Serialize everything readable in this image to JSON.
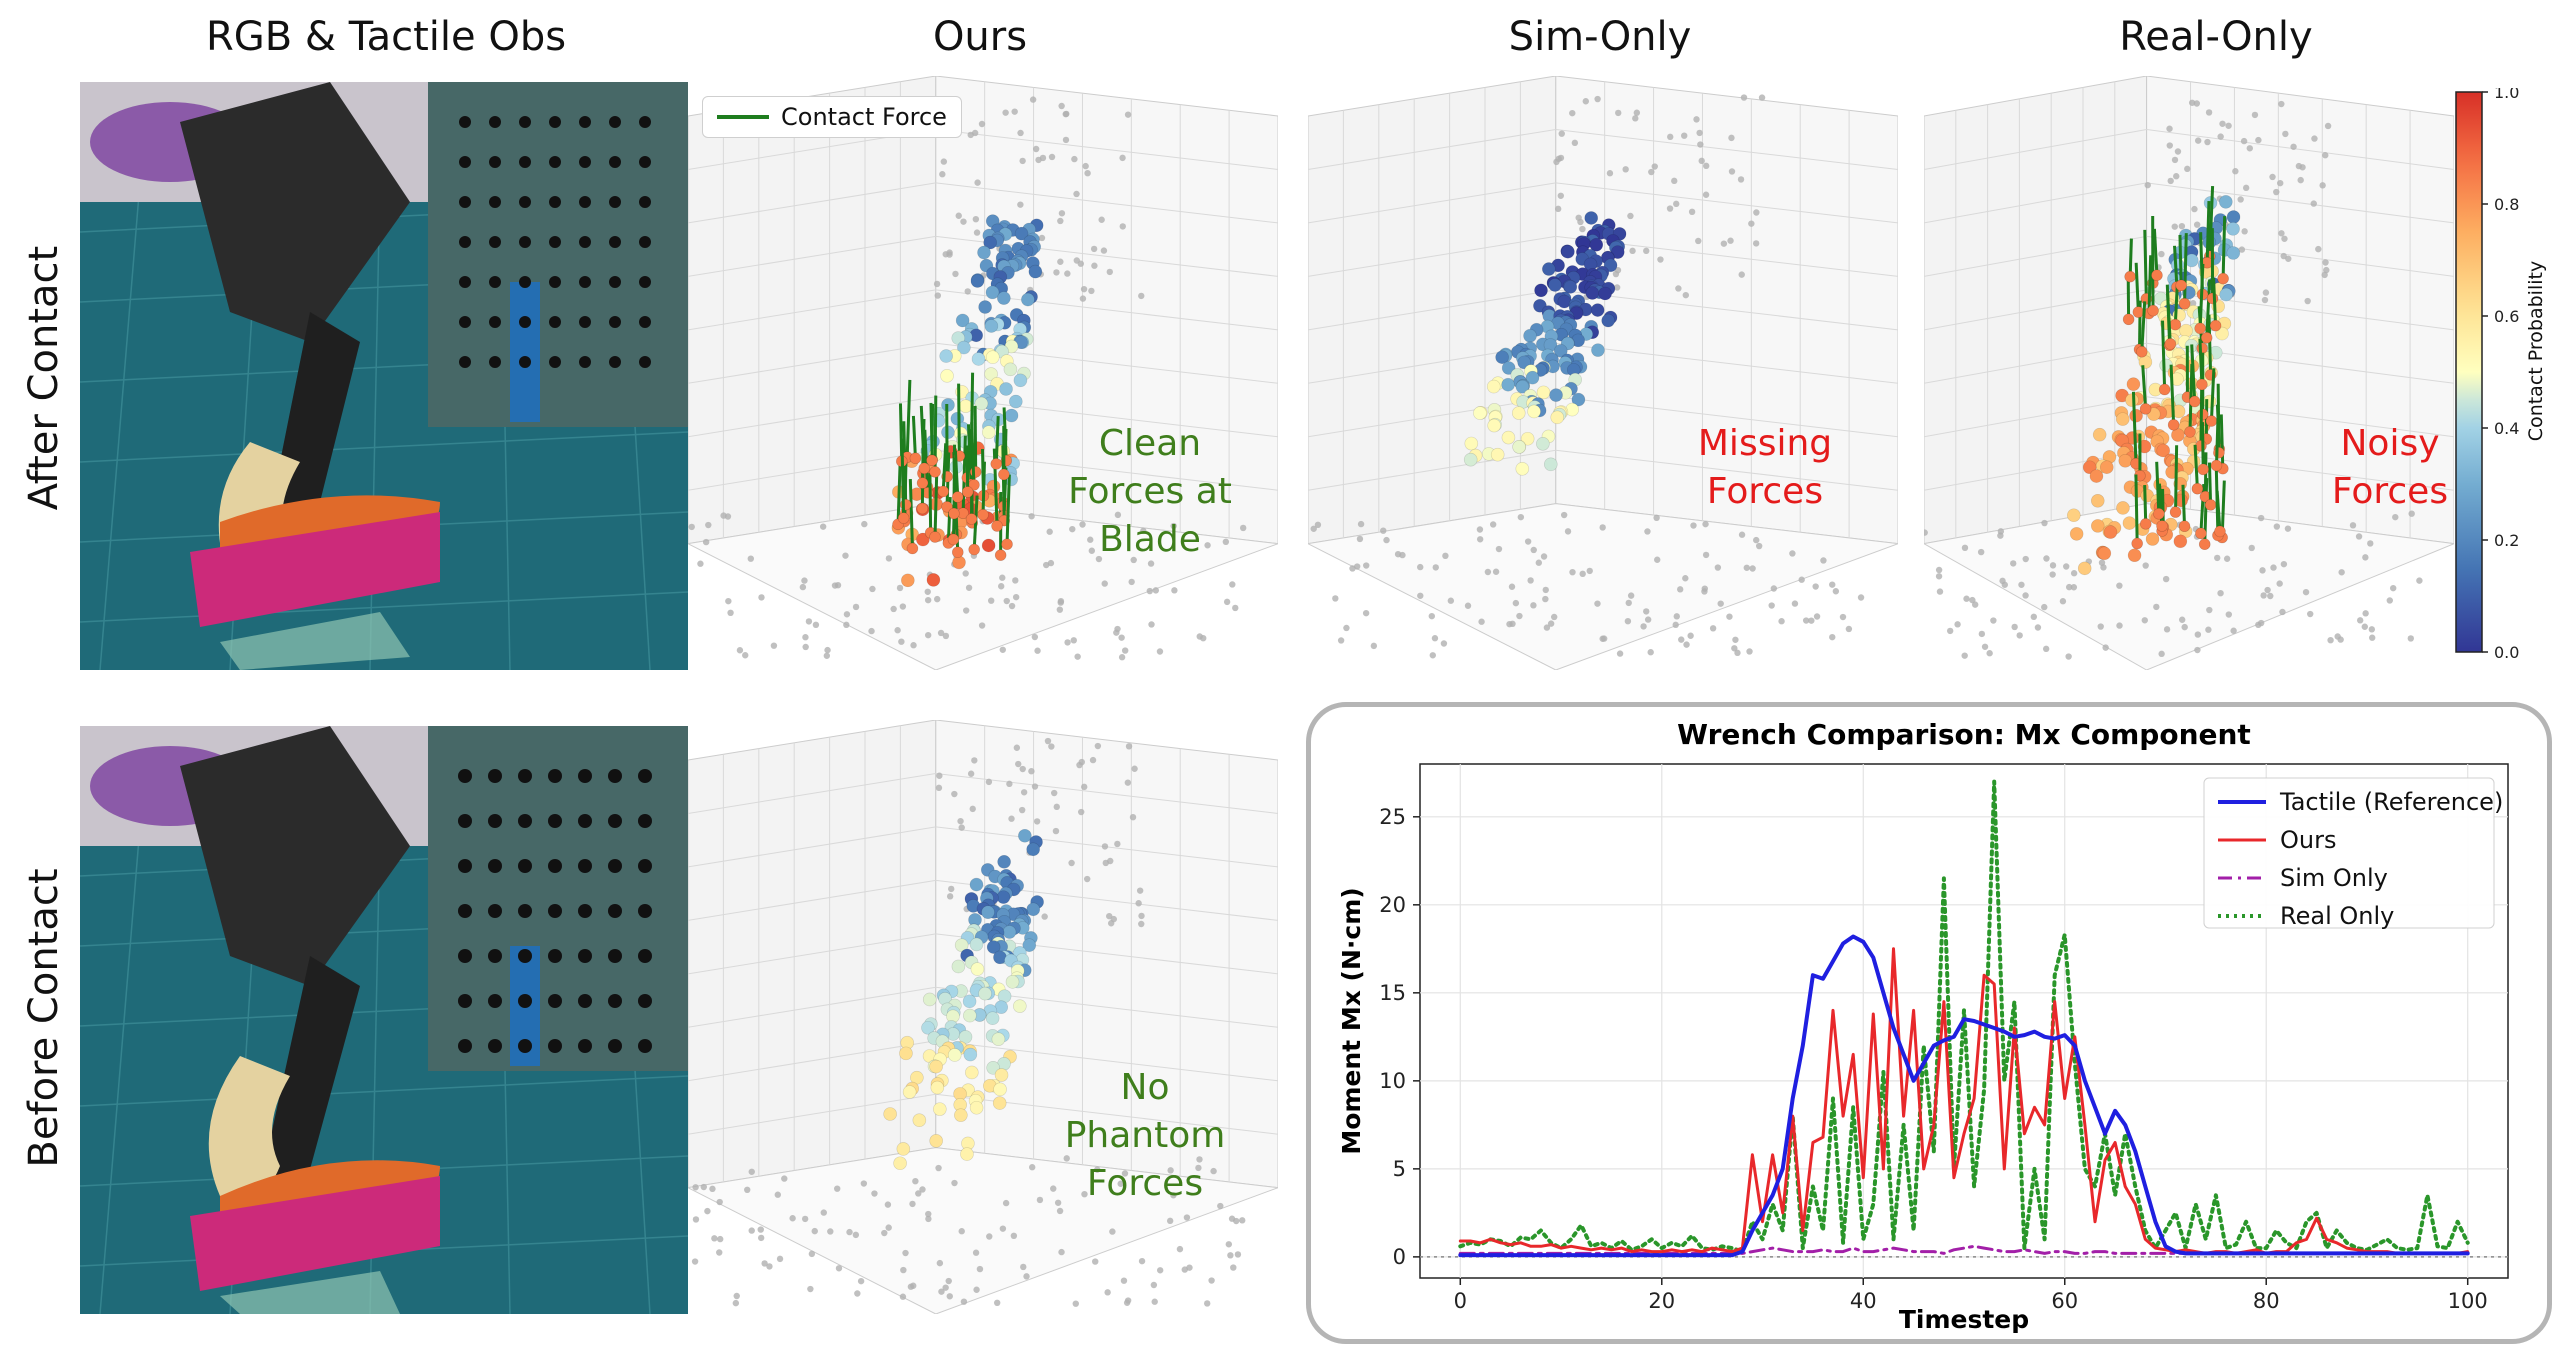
{
  "columns": {
    "obs": "RGB & Tactile Obs",
    "ours": "Ours",
    "sim": "Sim-Only",
    "real": "Real-Only"
  },
  "rows": {
    "after": "After Contact",
    "before": "Before Contact"
  },
  "legend_3d": "Contact Force",
  "annotations": {
    "ours_after": [
      "Clean",
      "Forces at",
      "Blade"
    ],
    "sim_after": [
      "Missing",
      "Forces"
    ],
    "real_after": [
      "Noisy",
      "Forces"
    ],
    "ours_before": [
      "No",
      "Phantom",
      "Forces"
    ]
  },
  "colorbar": {
    "label": "Contact Probability",
    "ticks": [
      "0.0",
      "0.2",
      "0.4",
      "0.6",
      "0.8",
      "1.0"
    ]
  },
  "colors": {
    "reference": "#1f1fe0",
    "ours": "#e8282b",
    "sim": "#a21fa8",
    "real": "#2a962a",
    "force": "#1e7d1e",
    "annot_good": "#3f7e1c",
    "annot_bad": "#e41b1b"
  },
  "chart_data": {
    "type": "line",
    "title": "Wrench Comparison: Mx Component",
    "xlabel": "Timestep",
    "ylabel": "Moment Mx (N·cm)",
    "xlim": [
      -4,
      104
    ],
    "ylim": [
      -1.2,
      28
    ],
    "xticks": [
      0,
      20,
      40,
      60,
      80,
      100
    ],
    "yticks": [
      0,
      5,
      10,
      15,
      20,
      25
    ],
    "grid": true,
    "legend_position": "top-right",
    "x": [
      0,
      1,
      2,
      3,
      4,
      5,
      6,
      7,
      8,
      9,
      10,
      11,
      12,
      13,
      14,
      15,
      16,
      17,
      18,
      19,
      20,
      21,
      22,
      23,
      24,
      25,
      26,
      27,
      28,
      29,
      30,
      31,
      32,
      33,
      34,
      35,
      36,
      37,
      38,
      39,
      40,
      41,
      42,
      43,
      44,
      45,
      46,
      47,
      48,
      49,
      50,
      51,
      52,
      53,
      54,
      55,
      56,
      57,
      58,
      59,
      60,
      61,
      62,
      63,
      64,
      65,
      66,
      67,
      68,
      69,
      70,
      71,
      72,
      73,
      74,
      75,
      76,
      77,
      78,
      79,
      80,
      81,
      82,
      83,
      84,
      85,
      86,
      87,
      88,
      89,
      90,
      91,
      92,
      93,
      94,
      95,
      96,
      97,
      98,
      99,
      100
    ],
    "series": [
      {
        "name": "Tactile (Reference)",
        "style": "solid",
        "width": 4,
        "values": [
          0.1,
          0.1,
          0.1,
          0.1,
          0.1,
          0.1,
          0.1,
          0.1,
          0.1,
          0.1,
          0.1,
          0.1,
          0.1,
          0.1,
          0.1,
          0.1,
          0.1,
          0.1,
          0.1,
          0.1,
          0.1,
          0.1,
          0.1,
          0.1,
          0.1,
          0.1,
          0.1,
          0.1,
          0.3,
          1.5,
          2.5,
          3.5,
          5.0,
          9.0,
          12.0,
          16.0,
          15.8,
          16.8,
          17.8,
          18.2,
          17.9,
          17.0,
          15.0,
          13.0,
          11.5,
          10.0,
          11.0,
          12.0,
          12.3,
          12.5,
          13.5,
          13.4,
          13.2,
          13.0,
          12.8,
          12.5,
          12.6,
          12.8,
          12.5,
          12.4,
          12.6,
          12.0,
          10.0,
          8.5,
          7.0,
          8.3,
          7.5,
          6.0,
          4.0,
          2.0,
          0.6,
          0.3,
          0.2,
          0.2,
          0.2,
          0.2,
          0.2,
          0.2,
          0.2,
          0.2,
          0.2,
          0.2,
          0.2,
          0.2,
          0.2,
          0.2,
          0.2,
          0.2,
          0.2,
          0.2,
          0.2,
          0.2,
          0.2,
          0.2,
          0.2,
          0.2,
          0.2,
          0.2,
          0.2,
          0.2,
          0.2
        ]
      },
      {
        "name": "Ours",
        "style": "solid",
        "width": 3,
        "values": [
          0.9,
          0.9,
          0.8,
          1.0,
          0.8,
          0.7,
          0.8,
          0.6,
          0.6,
          0.7,
          0.5,
          0.6,
          0.5,
          0.4,
          0.5,
          0.4,
          0.5,
          0.3,
          0.4,
          0.3,
          0.3,
          0.4,
          0.3,
          0.4,
          0.3,
          0.5,
          0.4,
          0.3,
          0.5,
          5.8,
          2.0,
          5.8,
          2.5,
          8.0,
          1.5,
          6.5,
          6.8,
          14.0,
          8.0,
          11.5,
          4.5,
          13.8,
          5.0,
          17.5,
          8.0,
          14.0,
          5.0,
          7.5,
          14.5,
          4.5,
          7.0,
          9.0,
          16.0,
          15.5,
          5.0,
          13.0,
          7.0,
          8.5,
          7.5,
          14.5,
          9.0,
          12.5,
          7.5,
          2.0,
          5.5,
          6.5,
          4.0,
          3.0,
          1.0,
          0.5,
          0.4,
          0.3,
          0.4,
          0.3,
          0.2,
          0.3,
          0.3,
          0.2,
          0.3,
          0.4,
          0.2,
          0.3,
          0.3,
          0.8,
          1.0,
          2.2,
          1.0,
          0.8,
          0.5,
          0.4,
          0.3,
          0.3,
          0.3,
          0.2,
          0.2,
          0.2,
          0.2,
          0.2,
          0.2,
          0.2,
          0.3
        ]
      },
      {
        "name": "Sim Only",
        "style": "dashdot",
        "width": 3,
        "values": [
          0.2,
          0.2,
          0.2,
          0.2,
          0.2,
          0.2,
          0.2,
          0.2,
          0.2,
          0.2,
          0.2,
          0.2,
          0.2,
          0.2,
          0.2,
          0.2,
          0.2,
          0.2,
          0.2,
          0.2,
          0.2,
          0.2,
          0.2,
          0.2,
          0.2,
          0.2,
          0.2,
          0.2,
          0.2,
          0.3,
          0.4,
          0.5,
          0.4,
          0.3,
          0.3,
          0.3,
          0.4,
          0.3,
          0.3,
          0.5,
          0.3,
          0.3,
          0.4,
          0.5,
          0.4,
          0.3,
          0.3,
          0.3,
          0.2,
          0.4,
          0.5,
          0.6,
          0.5,
          0.4,
          0.3,
          0.3,
          0.4,
          0.3,
          0.2,
          0.3,
          0.3,
          0.2,
          0.2,
          0.3,
          0.3,
          0.2,
          0.2,
          0.2,
          0.2,
          0.2,
          0.2,
          0.2,
          0.2,
          0.2,
          0.2,
          0.2,
          0.2,
          0.2,
          0.2,
          0.2,
          0.2,
          0.2,
          0.2,
          0.2,
          0.2,
          0.2,
          0.2,
          0.2,
          0.2,
          0.2,
          0.2,
          0.2,
          0.2,
          0.2,
          0.2,
          0.2,
          0.2,
          0.2,
          0.2,
          0.2,
          0.2
        ]
      },
      {
        "name": "Real Only",
        "style": "dotted",
        "width": 4,
        "values": [
          0.6,
          0.8,
          0.7,
          1.0,
          0.9,
          0.6,
          1.1,
          1.0,
          1.5,
          0.8,
          0.5,
          1.0,
          1.8,
          0.6,
          0.8,
          0.5,
          0.9,
          0.4,
          0.6,
          1.0,
          0.5,
          0.8,
          0.6,
          1.2,
          0.5,
          0.4,
          0.6,
          0.5,
          0.3,
          2.0,
          1.0,
          3.0,
          1.5,
          8.0,
          0.5,
          4.0,
          1.5,
          9.0,
          0.8,
          8.5,
          1.0,
          3.0,
          10.5,
          1.0,
          7.5,
          1.5,
          12.0,
          6.0,
          21.5,
          5.0,
          14.0,
          4.0,
          9.5,
          27.0,
          10.0,
          14.5,
          0.5,
          5.0,
          1.0,
          16.0,
          18.3,
          11.0,
          5.0,
          4.0,
          7.0,
          3.5,
          7.0,
          4.0,
          1.5,
          0.5,
          1.5,
          2.5,
          0.5,
          3.0,
          1.0,
          3.5,
          0.5,
          0.7,
          2.0,
          0.5,
          0.5,
          1.5,
          0.8,
          0.5,
          2.0,
          2.5,
          0.5,
          1.5,
          0.8,
          0.5,
          0.4,
          0.7,
          1.0,
          0.5,
          0.4,
          0.5,
          3.5,
          0.6,
          0.5,
          2.0,
          0.8
        ]
      }
    ]
  }
}
